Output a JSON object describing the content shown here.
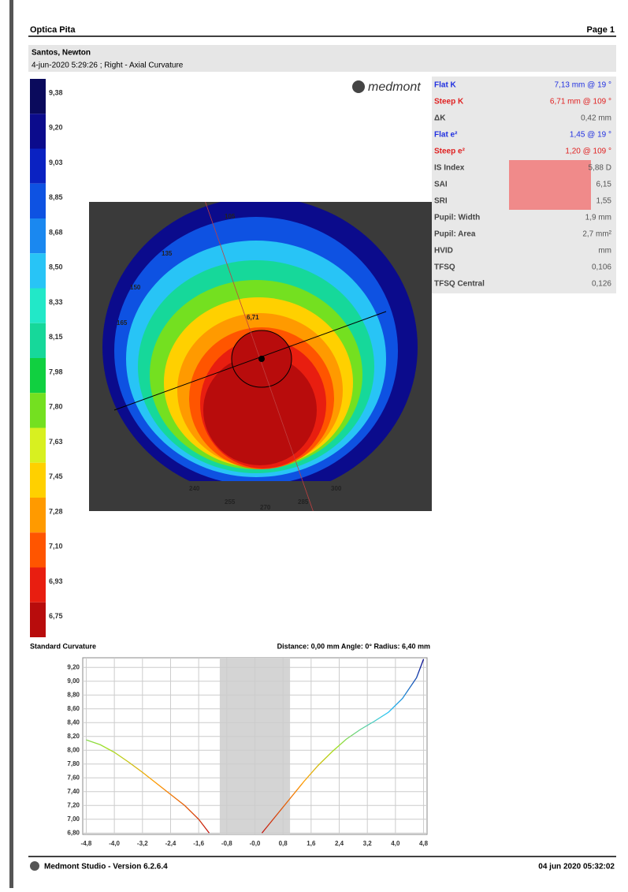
{
  "header": {
    "left": "Optica Pita",
    "right": "Page 1"
  },
  "patient": {
    "name": "Santos, Newton",
    "line": "4-jun-2020 5:29:26 ; Right - Axial Curvature"
  },
  "logo": "medmont",
  "scale": [
    {
      "label": "9,38",
      "color": "#0a0a5c"
    },
    {
      "label": "9,20",
      "color": "#0b0b8c"
    },
    {
      "label": "9,03",
      "color": "#0a22c2"
    },
    {
      "label": "8,85",
      "color": "#0e52e2"
    },
    {
      "label": "8,68",
      "color": "#1a88f0"
    },
    {
      "label": "8,50",
      "color": "#28c4f6"
    },
    {
      "label": "8,33",
      "color": "#22e8c8"
    },
    {
      "label": "8,15",
      "color": "#16d89a"
    },
    {
      "label": "7,98",
      "color": "#10d040"
    },
    {
      "label": "7,80",
      "color": "#74e020"
    },
    {
      "label": "7,63",
      "color": "#d8f020"
    },
    {
      "label": "7,45",
      "color": "#ffd000"
    },
    {
      "label": "7,28",
      "color": "#ff9a00"
    },
    {
      "label": "7,10",
      "color": "#ff5500"
    },
    {
      "label": "6,93",
      "color": "#e81e10"
    },
    {
      "label": "6,75",
      "color": "#b80c0c"
    }
  ],
  "map_labels": [
    "6,71",
    "240",
    "255",
    "270",
    "285",
    "300",
    "165",
    "150",
    "135",
    "105"
  ],
  "stats": [
    {
      "label": "Flat K",
      "value": "7,13 mm @  19 °",
      "color": "#2030e0"
    },
    {
      "label": "Steep K",
      "value": "6,71 mm @ 109 °",
      "color": "#e02020"
    },
    {
      "label": "ΔK",
      "value": "0,42 mm",
      "color": "#555555"
    },
    {
      "label": "Flat e²",
      "value": "1,45 @  19 °",
      "color": "#2030e0"
    },
    {
      "label": "Steep e²",
      "value": "1,20 @ 109 °",
      "color": "#e02020"
    },
    {
      "label": "IS Index",
      "value": "5,88 D",
      "color": "#555555",
      "highlight": true
    },
    {
      "label": "SAI",
      "value": "6,15",
      "color": "#555555",
      "highlight": true
    },
    {
      "label": "SRI",
      "value": "1,55",
      "color": "#555555",
      "highlight": true
    },
    {
      "label": "Pupil: Width",
      "value": "1,9 mm",
      "color": "#555555"
    },
    {
      "label": "Pupil: Area",
      "value": "2,7 mm²",
      "color": "#555555"
    },
    {
      "label": "HVID",
      "value": "mm",
      "color": "#555555"
    },
    {
      "label": "TFSQ",
      "value": "0,106",
      "color": "#555555"
    },
    {
      "label": "TFSQ Central",
      "value": "0,126",
      "color": "#555555"
    }
  ],
  "chart_data": {
    "type": "line",
    "title": "Standard Curvature",
    "subtitle": "Distance: 0,00 mm Angle: 0° Radius: 6,40 mm",
    "x": [
      -4.8,
      -4.4,
      -4.0,
      -3.6,
      -3.2,
      -2.8,
      -2.4,
      -2.0,
      -1.6,
      -1.3,
      0,
      0.2,
      0.6,
      1.0,
      1.4,
      1.8,
      2.2,
      2.6,
      3.0,
      3.4,
      3.8,
      4.2,
      4.6,
      4.8
    ],
    "series": [
      {
        "values": [
          8.15,
          8.08,
          7.97,
          7.83,
          7.68,
          7.52,
          7.36,
          7.2,
          7.0,
          6.8,
          null,
          6.8,
          7.05,
          7.3,
          7.55,
          7.78,
          7.98,
          8.16,
          8.3,
          8.42,
          8.55,
          8.75,
          9.05,
          9.32
        ]
      }
    ],
    "shaded": [
      -1.0,
      1.0
    ],
    "xlim": [
      -4.9,
      4.9
    ],
    "ylim": [
      6.78,
      9.34
    ],
    "xticks": [
      {
        "value": -4.8,
        "label": "-4,8"
      },
      {
        "value": -4.0,
        "label": "-4,0"
      },
      {
        "value": -3.2,
        "label": "-3,2"
      },
      {
        "value": -2.4,
        "label": "-2,4"
      },
      {
        "value": -1.6,
        "label": "-1,6"
      },
      {
        "value": -0.8,
        "label": "-0,8"
      },
      {
        "value": 0,
        "label": "-0,0"
      },
      {
        "value": 0.8,
        "label": "0,8"
      },
      {
        "value": 1.6,
        "label": "1,6"
      },
      {
        "value": 2.4,
        "label": "2,4"
      },
      {
        "value": 3.2,
        "label": "3,2"
      },
      {
        "value": 4.0,
        "label": "4,0"
      },
      {
        "value": 4.8,
        "label": "4,8"
      }
    ],
    "yticks": [
      {
        "value": 6.8,
        "label": "6,80"
      },
      {
        "value": 7.0,
        "label": "7,00"
      },
      {
        "value": 7.2,
        "label": "7,20"
      },
      {
        "value": 7.4,
        "label": "7,40"
      },
      {
        "value": 7.6,
        "label": "7,60"
      },
      {
        "value": 7.8,
        "label": "7,80"
      },
      {
        "value": 8.0,
        "label": "8,00"
      },
      {
        "value": 8.2,
        "label": "8,20"
      },
      {
        "value": 8.4,
        "label": "8,40"
      },
      {
        "value": 8.6,
        "label": "8,60"
      },
      {
        "value": 8.8,
        "label": "8,80"
      },
      {
        "value": 9.0,
        "label": "9,00"
      },
      {
        "value": 9.2,
        "label": "9,20"
      }
    ],
    "grid": true
  },
  "footer": {
    "left": "Medmont Studio - Version 6.2.6.4",
    "right": "04 jun 2020 05:32:02"
  }
}
